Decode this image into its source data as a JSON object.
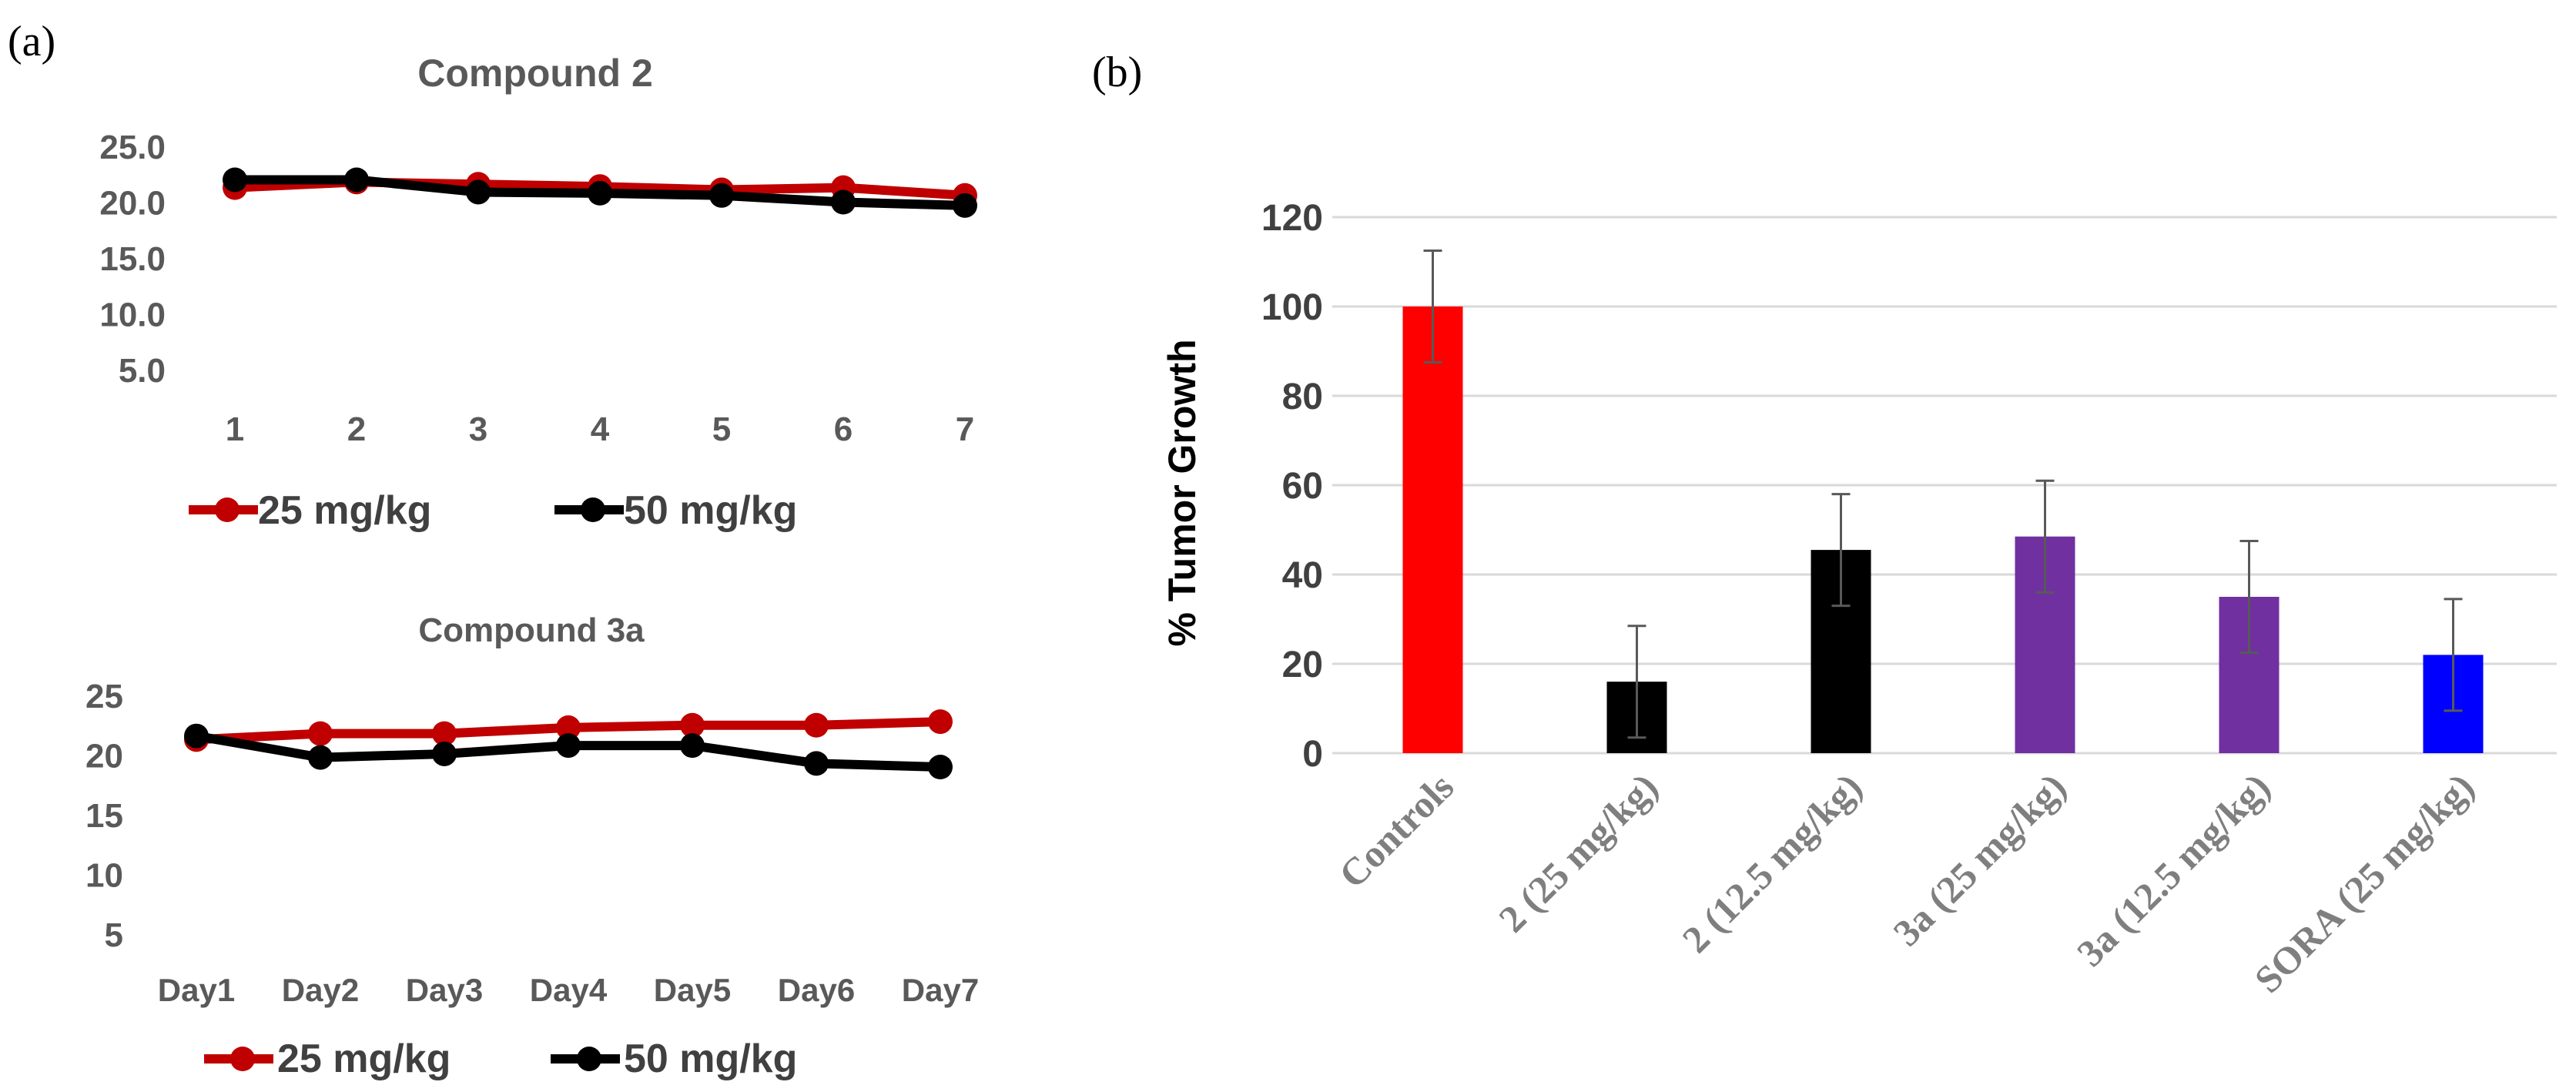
{
  "panels": {
    "a_label": "(a)",
    "b_label": "(b)"
  },
  "chart_data": [
    {
      "type": "line",
      "panel": "a",
      "title": "Compound 2",
      "x": [
        "1",
        "2",
        "3",
        "4",
        "5",
        "6",
        "7"
      ],
      "yticks": [
        "5.0",
        "10.0",
        "15.0",
        "20.0",
        "25.0"
      ],
      "ylim": [
        5,
        25
      ],
      "series": [
        {
          "name": "25 mg/kg",
          "color": "#c00000",
          "values": [
            21.3,
            21.8,
            21.6,
            21.4,
            21.1,
            21.3,
            20.6
          ]
        },
        {
          "name": "50 mg/kg",
          "color": "#000000",
          "values": [
            22.0,
            22.0,
            20.9,
            20.8,
            20.6,
            20.0,
            19.7
          ]
        }
      ],
      "legend": [
        "25 mg/kg",
        "50 mg/kg"
      ],
      "legend_position": "bottom"
    },
    {
      "type": "line",
      "panel": "a",
      "title": "Compound 3a",
      "x": [
        "Day1",
        "Day2",
        "Day3",
        "Day4",
        "Day5",
        "Day6",
        "Day7"
      ],
      "yticks": [
        "5",
        "10",
        "15",
        "20",
        "25"
      ],
      "ylim": [
        5,
        25
      ],
      "series": [
        {
          "name": "25 mg/kg",
          "color": "#c00000",
          "values": [
            21.3,
            21.8,
            21.8,
            22.3,
            22.5,
            22.5,
            22.8
          ]
        },
        {
          "name": "50 mg/kg",
          "color": "#000000",
          "values": [
            21.6,
            19.8,
            20.1,
            20.8,
            20.8,
            19.3,
            19.0
          ]
        }
      ],
      "legend": [
        "25 mg/kg",
        "50 mg/kg"
      ],
      "legend_position": "bottom"
    },
    {
      "type": "bar",
      "panel": "b",
      "title": "",
      "ylabel": "% Tumor Growth",
      "xlabel": "",
      "ylim": [
        0,
        120
      ],
      "yticks": [
        "0",
        "20",
        "40",
        "60",
        "80",
        "100",
        "120"
      ],
      "grid": true,
      "categories": [
        "Controls",
        "2 (25 mg/kg)",
        "2 (12.5 mg/kg)",
        "3a (25 mg/kg)",
        "3a (12.5 mg/kg)",
        "SORA (25 mg/kg)"
      ],
      "values": [
        100,
        16,
        45.5,
        48.5,
        35,
        22
      ],
      "errors": [
        12.5,
        12.5,
        12.5,
        12.5,
        12.5,
        12.5
      ],
      "colors": [
        "#ff0000",
        "#000000",
        "#000000",
        "#7030a0",
        "#7030a0",
        "#0000ff"
      ]
    }
  ]
}
